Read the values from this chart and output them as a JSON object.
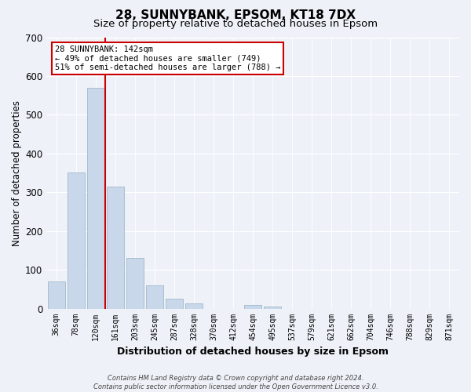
{
  "title": "28, SUNNYBANK, EPSOM, KT18 7DX",
  "subtitle": "Size of property relative to detached houses in Epsom",
  "xlabel": "Distribution of detached houses by size in Epsom",
  "ylabel": "Number of detached properties",
  "bar_labels": [
    "36sqm",
    "78sqm",
    "120sqm",
    "161sqm",
    "203sqm",
    "245sqm",
    "287sqm",
    "328sqm",
    "370sqm",
    "412sqm",
    "454sqm",
    "495sqm",
    "537sqm",
    "579sqm",
    "621sqm",
    "662sqm",
    "704sqm",
    "746sqm",
    "788sqm",
    "829sqm",
    "871sqm"
  ],
  "bar_values": [
    70,
    352,
    570,
    314,
    130,
    60,
    26,
    14,
    0,
    0,
    10,
    5,
    0,
    0,
    0,
    0,
    0,
    0,
    0,
    0,
    0
  ],
  "bar_color": "#c8d8ea",
  "bar_edge_color": "#a0b8cc",
  "ylim": [
    0,
    700
  ],
  "yticks": [
    0,
    100,
    200,
    300,
    400,
    500,
    600,
    700
  ],
  "vline_color": "#cc0000",
  "annotation_text": "28 SUNNYBANK: 142sqm\n← 49% of detached houses are smaller (749)\n51% of semi-detached houses are larger (788) →",
  "annotation_box_color": "#ffffff",
  "annotation_box_edge": "#cc0000",
  "footer_line1": "Contains HM Land Registry data © Crown copyright and database right 2024.",
  "footer_line2": "Contains public sector information licensed under the Open Government Licence v3.0.",
  "background_color": "#eef2f8",
  "grid_color": "#ffffff",
  "title_fontsize": 11,
  "subtitle_fontsize": 9.5
}
